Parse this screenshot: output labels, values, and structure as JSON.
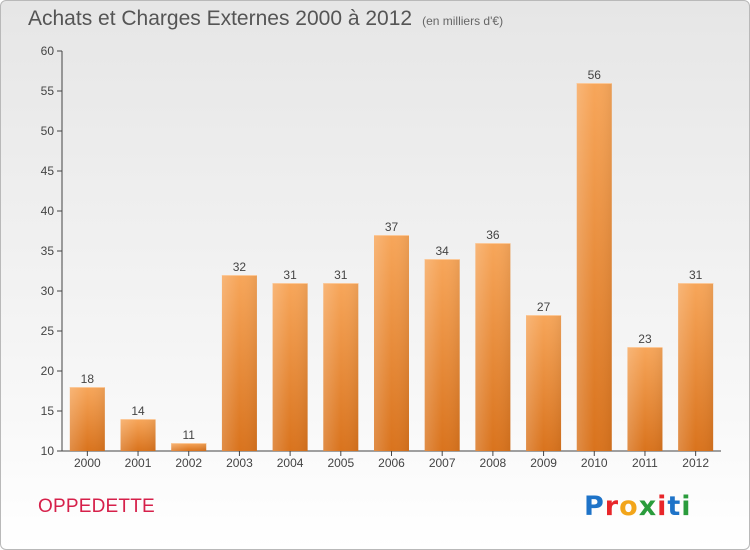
{
  "header": {
    "title": "Achats et Charges Externes 2000 à 2012",
    "unit": "(en milliers d'€)"
  },
  "footer": {
    "commune": "OPPEDETTE",
    "brand": "Proxiti",
    "brand_colors": [
      "#1e73c8",
      "#e8262a",
      "#f2a51a",
      "#2a9c3c",
      "#e8262a",
      "#1e73c8",
      "#2a9c3c"
    ]
  },
  "colors": {
    "bar_light": "#f7a65a",
    "bar_dark": "#d9731d",
    "axis": "#444444",
    "grid": "#dddddd"
  },
  "chart_data": {
    "type": "bar",
    "title": "Achats et Charges Externes 2000 à 2012",
    "subtitle": "(en milliers d'€)",
    "categories": [
      "2000",
      "2001",
      "2002",
      "2003",
      "2004",
      "2005",
      "2006",
      "2007",
      "2008",
      "2009",
      "2010",
      "2011",
      "2012"
    ],
    "values": [
      18,
      14,
      11,
      32,
      31,
      31,
      37,
      34,
      36,
      27,
      56,
      23,
      31
    ],
    "ylim": [
      10,
      60
    ],
    "yticks": [
      10,
      15,
      20,
      25,
      30,
      35,
      40,
      45,
      50,
      55,
      60
    ],
    "grid": false,
    "data_labels": true
  }
}
